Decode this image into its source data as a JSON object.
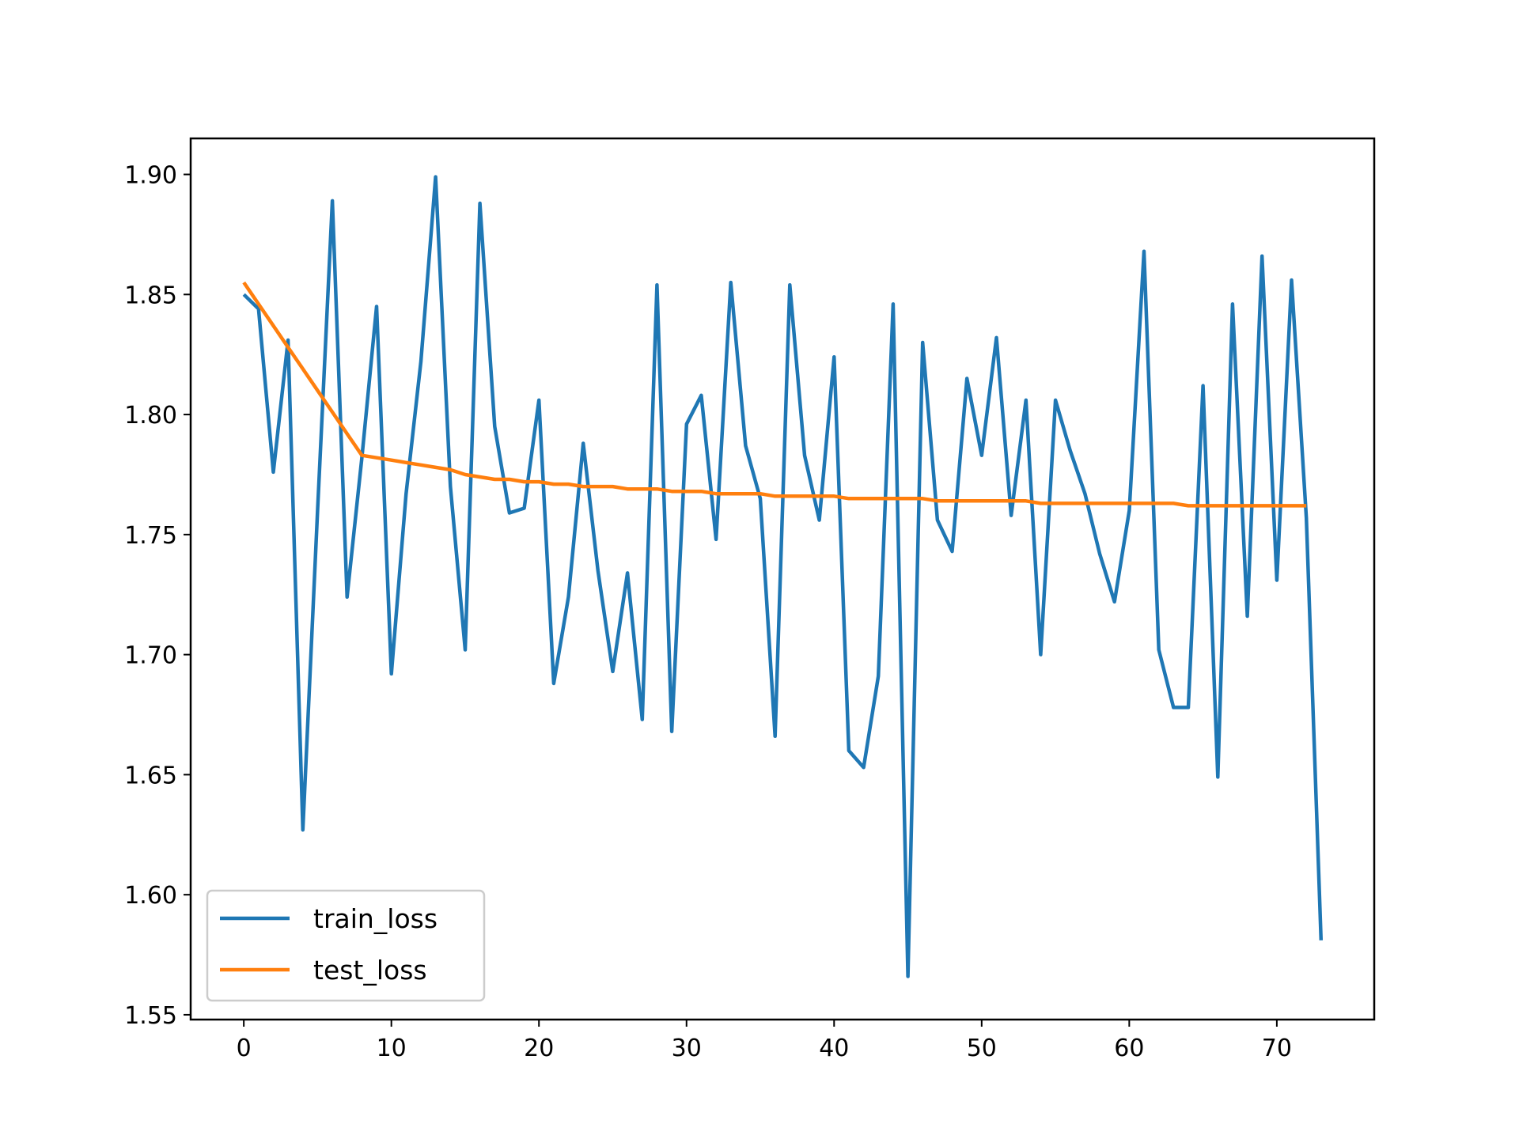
{
  "chart_data": {
    "type": "line",
    "title": "",
    "xlabel": "",
    "ylabel": "",
    "xlim": [
      -3.6,
      76.6
    ],
    "ylim": [
      1.548,
      1.915
    ],
    "grid": false,
    "legend_position": "lower-left",
    "xticks": [
      0,
      10,
      20,
      30,
      40,
      50,
      60,
      70
    ],
    "xtick_labels": [
      "0",
      "10",
      "20",
      "30",
      "40",
      "50",
      "60",
      "70"
    ],
    "yticks": [
      1.55,
      1.6,
      1.65,
      1.7,
      1.75,
      1.8,
      1.85,
      1.9
    ],
    "ytick_labels": [
      "1.55",
      "1.60",
      "1.65",
      "1.70",
      "1.75",
      "1.80",
      "1.85",
      "1.90"
    ],
    "series": [
      {
        "name": "train_loss",
        "color": "#1f77b4",
        "x": [
          0,
          1,
          2,
          3,
          4,
          5,
          6,
          7,
          8,
          9,
          10,
          11,
          12,
          13,
          14,
          15,
          16,
          17,
          18,
          19,
          20,
          21,
          22,
          23,
          24,
          25,
          26,
          27,
          28,
          29,
          30,
          31,
          32,
          33,
          34,
          35,
          36,
          37,
          38,
          39,
          40,
          41,
          42,
          43,
          44,
          45,
          46,
          47,
          48,
          49,
          50,
          51,
          52,
          53,
          54,
          55,
          56,
          57,
          58,
          59,
          60,
          61,
          62,
          63,
          64,
          65,
          66,
          67,
          68,
          69,
          70,
          71,
          72,
          73
        ],
        "values": [
          1.85,
          1.844,
          1.776,
          1.831,
          1.627,
          1.76,
          1.889,
          1.724,
          1.782,
          1.845,
          1.692,
          1.767,
          1.822,
          1.899,
          1.77,
          1.702,
          1.888,
          1.795,
          1.759,
          1.761,
          1.806,
          1.688,
          1.724,
          1.788,
          1.735,
          1.693,
          1.734,
          1.673,
          1.854,
          1.668,
          1.796,
          1.808,
          1.748,
          1.855,
          1.787,
          1.765,
          1.666,
          1.854,
          1.783,
          1.756,
          1.824,
          1.66,
          1.653,
          1.691,
          1.846,
          1.566,
          1.83,
          1.756,
          1.743,
          1.815,
          1.783,
          1.832,
          1.758,
          1.806,
          1.7,
          1.806,
          1.785,
          1.767,
          1.742,
          1.722,
          1.76,
          1.868,
          1.702,
          1.678,
          1.678,
          1.812,
          1.649,
          1.846,
          1.716,
          1.866,
          1.731,
          1.856,
          1.757,
          1.581
        ]
      },
      {
        "name": "test_loss",
        "color": "#ff7f0e",
        "x": [
          0,
          1,
          2,
          3,
          4,
          5,
          6,
          7,
          8,
          9,
          10,
          11,
          12,
          13,
          14,
          15,
          16,
          17,
          18,
          19,
          20,
          21,
          22,
          23,
          24,
          25,
          26,
          27,
          28,
          29,
          30,
          31,
          32,
          33,
          34,
          35,
          36,
          37,
          38,
          39,
          40,
          41,
          42,
          43,
          44,
          45,
          46,
          47,
          48,
          49,
          50,
          51,
          52,
          53,
          54,
          55,
          56,
          57,
          58,
          59,
          60,
          61,
          62,
          63,
          64,
          65,
          66,
          67,
          68,
          69,
          70,
          71,
          72
        ],
        "values": [
          1.855,
          1.846,
          1.837,
          1.828,
          1.819,
          1.81,
          1.801,
          1.792,
          1.783,
          1.782,
          1.781,
          1.78,
          1.779,
          1.778,
          1.777,
          1.775,
          1.774,
          1.773,
          1.773,
          1.772,
          1.772,
          1.771,
          1.771,
          1.77,
          1.77,
          1.77,
          1.769,
          1.769,
          1.769,
          1.768,
          1.768,
          1.768,
          1.767,
          1.767,
          1.767,
          1.767,
          1.766,
          1.766,
          1.766,
          1.766,
          1.766,
          1.765,
          1.765,
          1.765,
          1.765,
          1.765,
          1.765,
          1.764,
          1.764,
          1.764,
          1.764,
          1.764,
          1.764,
          1.764,
          1.763,
          1.763,
          1.763,
          1.763,
          1.763,
          1.763,
          1.763,
          1.763,
          1.763,
          1.763,
          1.762,
          1.762,
          1.762,
          1.762,
          1.762,
          1.762,
          1.762,
          1.762,
          1.762
        ]
      }
    ]
  }
}
